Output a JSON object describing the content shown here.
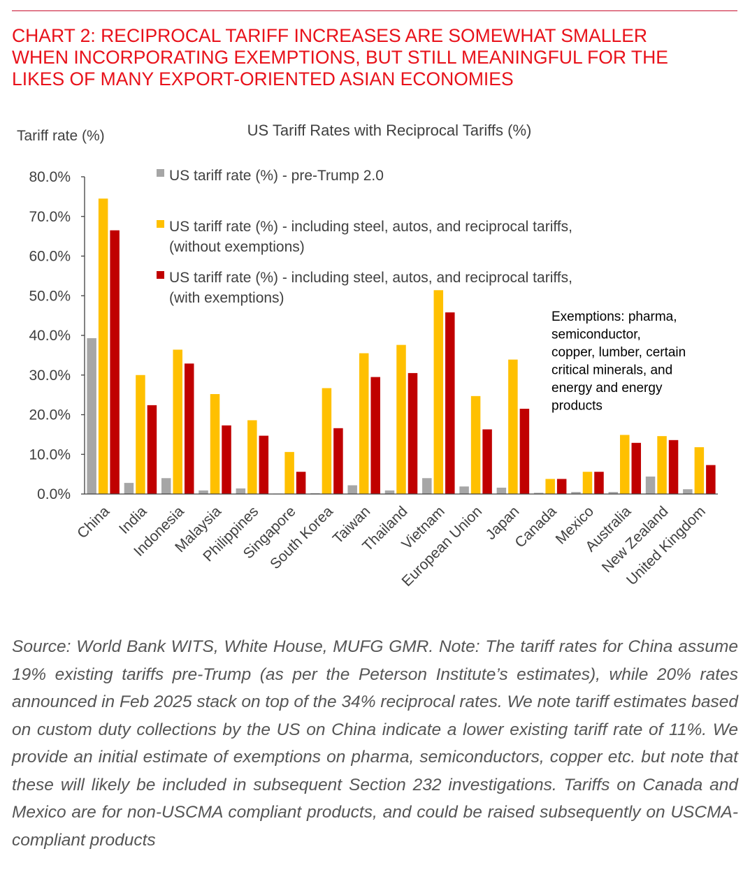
{
  "heading": {
    "lines": [
      "CHART 2: RECIPROCAL TARIFF INCREASES ARE SOMEWHAT SMALLER",
      "WHEN INCORPORATING EXEMPTIONS, BUT STILL MEANINGFUL FOR THE",
      "LIKES OF MANY EXPORT-ORIENTED ASIAN ECONOMIES"
    ]
  },
  "chart_data": {
    "type": "bar",
    "title": "US Tariff Rates with Reciprocal Tariffs (%)",
    "ylabel": "Tariff rate (%)",
    "xlabel": "",
    "ylim": [
      0,
      80
    ],
    "yticks": [
      "0.0%",
      "10.0%",
      "20.0%",
      "30.0%",
      "40.0%",
      "50.0%",
      "60.0%",
      "70.0%",
      "80.0%"
    ],
    "categories": [
      "China",
      "India",
      "Indonesia",
      "Malaysia",
      "Philippines",
      "Singapore",
      "South Korea",
      "Taiwan",
      "Thailand",
      "Vietnam",
      "European Union",
      "Japan",
      "Canada",
      "Mexico",
      "Australia",
      "New Zealand",
      "United Kingdom"
    ],
    "series": [
      {
        "name": "US tariff rate (%) - pre-Trump 2.0",
        "legend_lines": [
          "US tariff rate (%) - pre-Trump 2.0"
        ],
        "color": "#a6a6a6",
        "values": [
          39.3,
          2.8,
          4.0,
          0.9,
          1.4,
          0.1,
          0.2,
          2.2,
          0.9,
          4.0,
          1.9,
          1.6,
          0.3,
          0.5,
          0.5,
          4.4,
          1.2
        ]
      },
      {
        "name": "US tariff rate (%) - including steel, autos, and reciprocal tariffs, (without exemptions)",
        "legend_lines": [
          "US tariff rate (%) - including steel, autos, and reciprocal tariffs,",
          "(without exemptions)"
        ],
        "color": "#ffc000",
        "values": [
          74.5,
          30.0,
          36.4,
          25.2,
          18.6,
          10.6,
          26.7,
          35.5,
          37.6,
          51.4,
          24.7,
          33.9,
          3.8,
          5.6,
          14.9,
          14.6,
          11.8
        ]
      },
      {
        "name": "US tariff rate (%) - including steel, autos, and reciprocal tariffs, (with exemptions)",
        "legend_lines": [
          "US tariff rate (%) - including steel, autos, and reciprocal tariffs,",
          "(with exemptions)"
        ],
        "color": "#c00000",
        "values": [
          66.5,
          22.4,
          32.9,
          17.3,
          14.7,
          5.6,
          16.6,
          29.5,
          30.5,
          45.8,
          16.3,
          21.5,
          3.8,
          5.6,
          12.9,
          13.6,
          7.3
        ]
      }
    ],
    "annotation": [
      "Exemptions: pharma,",
      "semiconductor,",
      "copper, lumber, certain",
      "critical minerals, and",
      "energy and energy",
      "products"
    ]
  },
  "note": {
    "text": "Source: World Bank WITS, White House, MUFG GMR. Note: The tariff rates for China assume 19% existing tariffs pre-Trump (as per the Peterson Institute’s estimates), while 20% rates announced in Feb 2025 stack on top of the 34% reciprocal rates. We note tariff estimates based on custom duty collections by the US on China indicate a lower existing tariff rate of 11%. We provide an initial estimate of exemptions on pharma, semiconductors, copper etc. but note that these will likely be included in subsequent Section 232 investigations. Tariffs on Canada and Mexico are for non-USCMA compliant products, and could be raised subsequently on USCMA-compliant products"
  }
}
